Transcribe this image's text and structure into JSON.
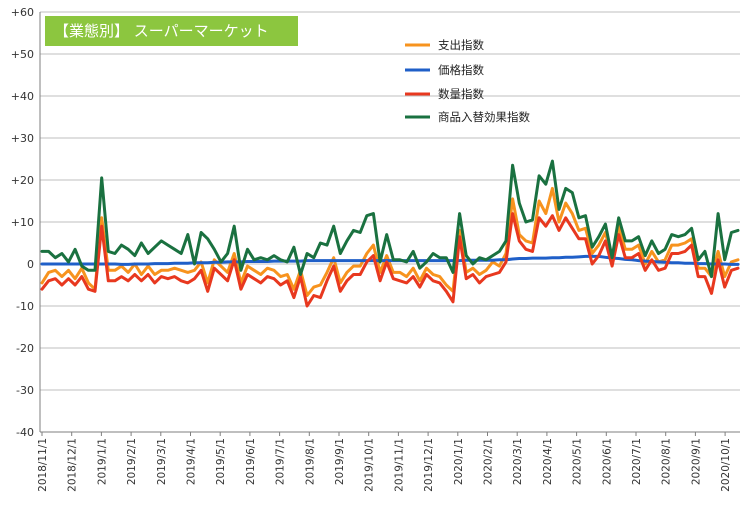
{
  "chart_data": {
    "type": "line",
    "title": "【業態別】 スーパーマーケット",
    "xlabel": "",
    "ylabel": "",
    "ylim": [
      -40,
      60
    ],
    "yticks": [
      60,
      50,
      40,
      30,
      20,
      10,
      0,
      -10,
      -20,
      -30,
      -40
    ],
    "ytick_labels": [
      "+60",
      "+50",
      "+40",
      "+30",
      "+20",
      "+10",
      "0",
      "-10",
      "-20",
      "-30",
      "-40"
    ],
    "xticks": [
      "2018/11/1",
      "2018/12/1",
      "2019/1/1",
      "2019/2/1",
      "2019/3/1",
      "2019/4/1",
      "2019/5/1",
      "2019/6/1",
      "2019/7/1",
      "2019/8/1",
      "2019/9/1",
      "2019/10/1",
      "2019/11/1",
      "2019/12/1",
      "2020/1/1",
      "2020/2/1",
      "2020/3/1",
      "2020/4/1",
      "2020/5/1",
      "2020/6/1",
      "2020/7/1",
      "2020/8/1",
      "2020/9/1",
      "2020/10/1"
    ],
    "grid": true,
    "legend_position": "top-right",
    "series": [
      {
        "name": "支出指数",
        "color": "#F7931E",
        "values": [
          -4.5,
          -2.0,
          -1.5,
          -3.0,
          -1.5,
          -3.5,
          -1.0,
          -4.5,
          -6.0,
          11.0,
          -1.5,
          -1.5,
          -0.5,
          -2.0,
          0.0,
          -2.5,
          -0.5,
          -2.5,
          -1.5,
          -1.5,
          -1.0,
          -1.5,
          -2.0,
          -1.5,
          0.5,
          -4.5,
          1.0,
          -0.5,
          -2.0,
          2.5,
          -4.5,
          -0.5,
          -1.5,
          -2.5,
          -1.0,
          -1.5,
          -3.0,
          -2.5,
          -6.0,
          -1.5,
          -7.5,
          -5.5,
          -5.0,
          -2.0,
          1.5,
          -4.5,
          -2.0,
          -0.5,
          -0.5,
          2.5,
          4.5,
          -2.0,
          2.0,
          -2.0,
          -2.0,
          -3.0,
          -1.0,
          -4.0,
          -1.0,
          -2.5,
          -3.0,
          -5.0,
          -6.5,
          8.0,
          -2.0,
          -1.0,
          -2.5,
          -1.5,
          0.5,
          -0.5,
          2.5,
          15.5,
          7.0,
          5.5,
          5.0,
          15.0,
          12.0,
          18.0,
          10.0,
          14.5,
          12.0,
          8.0,
          8.5,
          2.5,
          4.5,
          7.5,
          1.0,
          9.0,
          3.5,
          3.5,
          4.5,
          0.0,
          3.0,
          0.5,
          1.0,
          4.5,
          4.5,
          5.0,
          6.0,
          -1.0,
          -1.0,
          -3.0,
          3.0,
          -3.0,
          0.5,
          1.0
        ],
        "name_note": ""
      },
      {
        "name": "価格指数",
        "color": "#1F5FC8",
        "values": [
          0.0,
          0.0,
          0.0,
          0.0,
          0.0,
          0.0,
          0.0,
          0.0,
          0.0,
          0.0,
          0.0,
          0.0,
          -0.1,
          -0.1,
          0.0,
          0.0,
          0.0,
          0.1,
          0.1,
          0.1,
          0.2,
          0.2,
          0.2,
          0.3,
          0.3,
          0.3,
          0.4,
          0.4,
          0.5,
          0.5,
          0.5,
          0.6,
          0.6,
          0.6,
          0.6,
          0.7,
          0.7,
          0.7,
          0.7,
          0.7,
          0.8,
          0.8,
          0.8,
          0.8,
          0.8,
          0.8,
          0.8,
          0.8,
          0.8,
          0.8,
          0.8,
          0.8,
          0.8,
          0.8,
          0.8,
          0.8,
          0.8,
          0.8,
          0.8,
          0.8,
          0.8,
          0.8,
          0.8,
          0.8,
          0.9,
          0.9,
          0.9,
          0.9,
          0.9,
          1.0,
          1.0,
          1.2,
          1.3,
          1.3,
          1.4,
          1.4,
          1.4,
          1.5,
          1.5,
          1.6,
          1.6,
          1.7,
          1.8,
          1.8,
          1.8,
          1.6,
          1.4,
          1.3,
          1.1,
          1.0,
          0.8,
          0.7,
          0.6,
          0.5,
          0.4,
          0.3,
          0.3,
          0.2,
          0.2,
          0.1,
          0.1,
          0.0,
          0.0,
          0.0,
          -0.1,
          -0.1
        ]
      },
      {
        "name": "数量指数",
        "color": "#E8381F",
        "values": [
          -6.0,
          -4.0,
          -3.5,
          -5.0,
          -3.5,
          -5.0,
          -3.0,
          -6.0,
          -6.5,
          9.0,
          -4.0,
          -4.0,
          -3.0,
          -4.0,
          -2.5,
          -4.0,
          -2.5,
          -4.5,
          -3.0,
          -3.5,
          -3.0,
          -4.0,
          -4.5,
          -3.5,
          -1.5,
          -6.5,
          -1.0,
          -2.5,
          -4.0,
          1.0,
          -6.0,
          -2.5,
          -3.5,
          -4.5,
          -3.0,
          -3.5,
          -5.0,
          -4.0,
          -8.0,
          -3.0,
          -10.0,
          -7.5,
          -8.0,
          -4.0,
          -0.5,
          -6.5,
          -4.0,
          -2.5,
          -2.5,
          0.5,
          2.0,
          -4.0,
          0.5,
          -3.5,
          -4.0,
          -4.5,
          -3.0,
          -5.5,
          -2.5,
          -4.0,
          -4.5,
          -6.5,
          -9.0,
          6.5,
          -3.5,
          -2.5,
          -4.5,
          -3.0,
          -2.5,
          -2.0,
          0.5,
          12.0,
          5.5,
          3.5,
          3.0,
          11.0,
          9.0,
          11.5,
          8.0,
          11.0,
          8.5,
          6.0,
          6.0,
          0.0,
          2.0,
          5.5,
          -0.5,
          7.0,
          1.5,
          1.5,
          2.5,
          -1.5,
          1.0,
          -1.5,
          -1.0,
          2.5,
          2.5,
          3.0,
          4.5,
          -3.0,
          -3.0,
          -7.0,
          1.0,
          -5.5,
          -1.5,
          -1.0
        ]
      },
      {
        "name": "商品入替効果指数",
        "color": "#1A7140",
        "values": [
          3.0,
          3.0,
          1.5,
          2.5,
          0.5,
          3.5,
          -0.5,
          -1.5,
          -1.5,
          20.5,
          3.0,
          2.5,
          4.5,
          3.5,
          2.0,
          5.0,
          2.5,
          4.0,
          5.5,
          4.5,
          3.5,
          2.5,
          7.0,
          0.0,
          7.5,
          6.0,
          3.5,
          0.5,
          2.5,
          9.0,
          -1.5,
          3.5,
          1.0,
          1.5,
          1.0,
          2.0,
          1.0,
          0.5,
          4.0,
          -2.5,
          2.5,
          1.5,
          5.0,
          4.5,
          9.0,
          2.5,
          5.5,
          8.0,
          7.5,
          11.5,
          12.0,
          0.5,
          7.0,
          1.0,
          1.0,
          0.5,
          3.0,
          -1.0,
          0.5,
          2.5,
          1.5,
          1.5,
          -2.0,
          12.0,
          2.0,
          0.0,
          1.5,
          1.0,
          2.0,
          3.0,
          5.5,
          23.5,
          14.5,
          10.0,
          10.5,
          21.0,
          19.0,
          24.5,
          13.0,
          18.0,
          17.0,
          11.0,
          11.5,
          4.0,
          6.5,
          9.5,
          1.5,
          11.0,
          5.5,
          5.5,
          6.5,
          2.0,
          5.5,
          2.5,
          3.5,
          7.0,
          6.5,
          7.0,
          8.5,
          1.0,
          3.0,
          -3.0,
          12.0,
          1.0,
          7.5,
          8.0
        ]
      }
    ]
  }
}
